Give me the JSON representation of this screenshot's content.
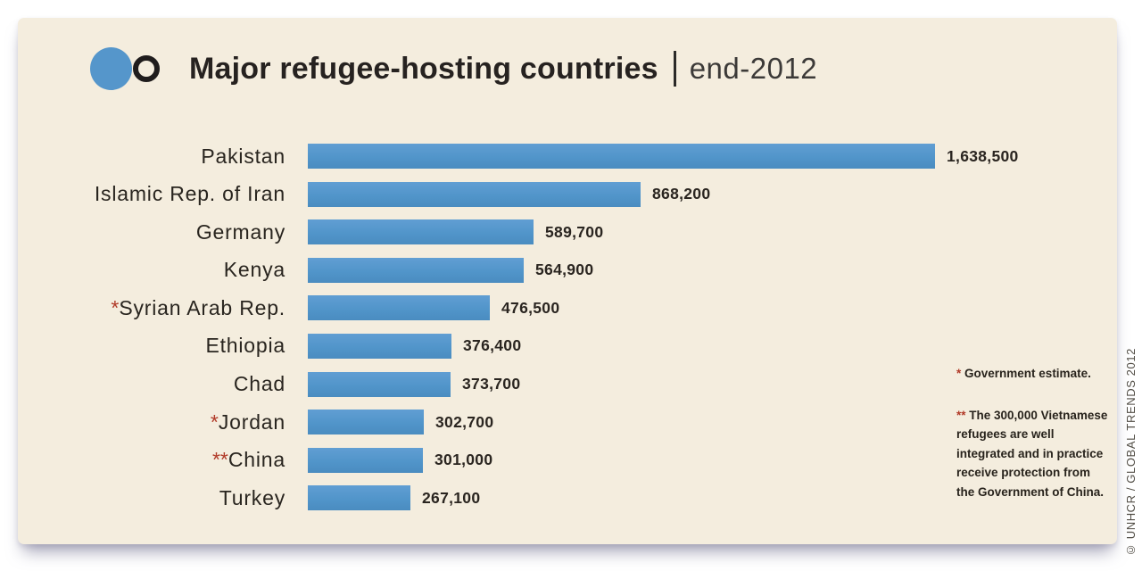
{
  "header": {
    "title": "Major refugee-hosting countries",
    "subtitle": "end-2012"
  },
  "chart_data": {
    "type": "bar",
    "orientation": "horizontal",
    "title": "Major refugee-hosting countries | end-2012",
    "categories": [
      "Pakistan",
      "Islamic Rep. of Iran",
      "Germany",
      "Kenya",
      "Syrian Arab Rep.",
      "Ethiopia",
      "Chad",
      "Jordan",
      "China",
      "Turkey"
    ],
    "values": [
      1638500,
      868200,
      589700,
      564900,
      476500,
      376400,
      373700,
      302700,
      301000,
      267100
    ],
    "value_labels": [
      "1,638,500",
      "868,200",
      "589,700",
      "564,900",
      "476,500",
      "376,400",
      "373,700",
      "302,700",
      "301,000",
      "267,100"
    ],
    "annotations": [
      "",
      "",
      "",
      "",
      "*",
      "",
      "",
      "*",
      "**",
      ""
    ],
    "xlim": [
      0,
      1638500
    ],
    "bar_color": "#5596cb",
    "grid": "off",
    "legend": "none"
  },
  "footnotes": [
    {
      "marker": "*",
      "text": "Government estimate."
    },
    {
      "marker": "**",
      "text": "The 300,000 Vietnamese refugees are well integrated and in practice receive protection from the Government of China."
    }
  ],
  "credit": "© UNHCR / GLOBAL TRENDS 2012",
  "colors": {
    "panel_background": "#f4edde",
    "bar_blue": "#5596cb",
    "annotation_red": "#b13a28",
    "text_dark": "#29251f"
  }
}
